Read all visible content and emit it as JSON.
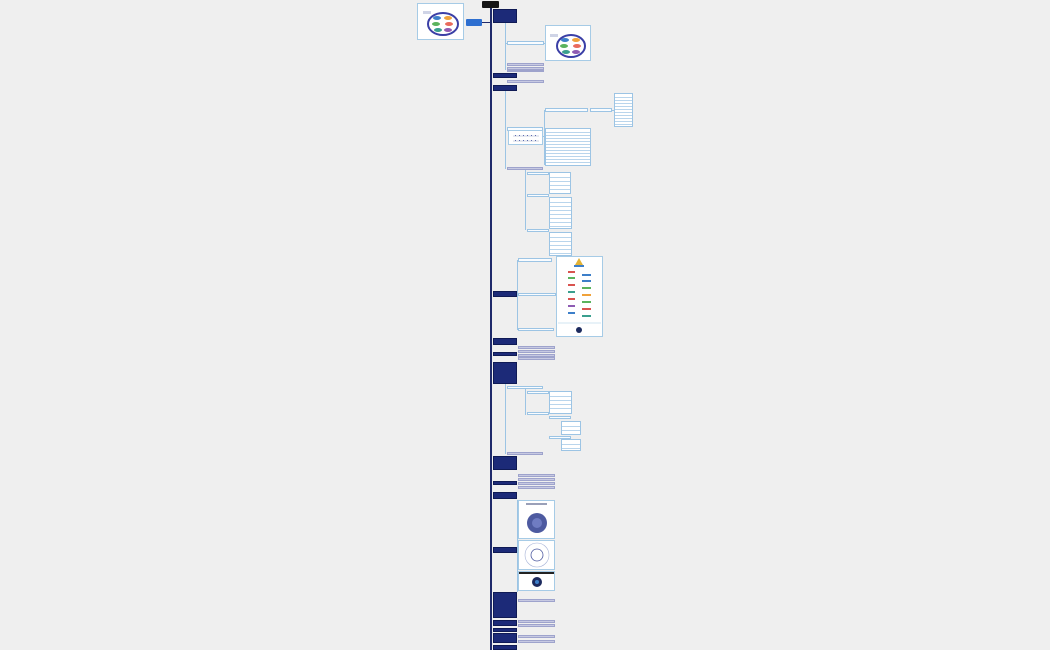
{
  "mindmap": {
    "root_label": "",
    "topic_count": 38,
    "colors": {
      "background": "#efefef",
      "root": "#161616",
      "topic": "#1c2a78",
      "connector": "#1f2a6b",
      "subtopic_border": "#9cc4e4",
      "note": "#c7c9e2",
      "accent_tag": "#2e6fd0"
    },
    "images": [
      {
        "name": "oval-diagram-thumbnail",
        "icon": "oval-diagram"
      },
      {
        "name": "oval-diagram-large",
        "icon": "oval-diagram"
      },
      {
        "name": "bar-chart-image",
        "icon": "bar-chart"
      },
      {
        "name": "icon-list-image",
        "icon": "icon-list"
      },
      {
        "name": "circle-diagram-1",
        "icon": "circle-diagram"
      },
      {
        "name": "circle-diagram-2",
        "icon": "circle-diagram"
      },
      {
        "name": "circle-diagram-3",
        "icon": "circle-diagram"
      }
    ]
  }
}
